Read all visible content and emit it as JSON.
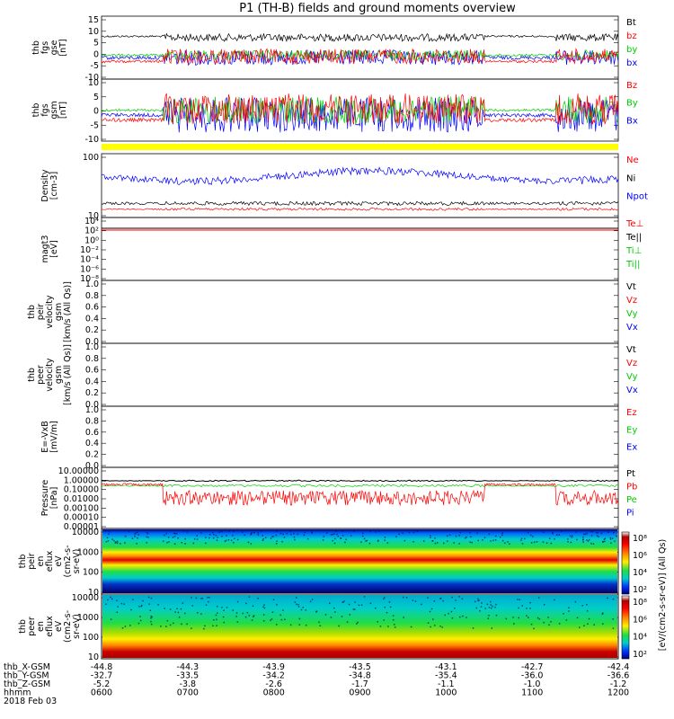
{
  "title": "P1 (TH-B) fields and ground moments overview",
  "colors": {
    "black": "#000000",
    "red": "#ff0000",
    "green": "#00cc00",
    "blue": "#0000ff",
    "yellow": "#ffff00"
  },
  "panels": [
    {
      "id": "fgs",
      "ylabel": [
        "thb",
        "fgs",
        "gse",
        "[nT]"
      ],
      "ticks": [
        "15",
        "10",
        "5",
        "0",
        "-5",
        "-10"
      ],
      "legend": [
        {
          "t": "Bt",
          "c": "black"
        },
        {
          "t": "bz",
          "c": "red"
        },
        {
          "t": "by",
          "c": "green"
        },
        {
          "t": "bx",
          "c": "blue"
        }
      ]
    },
    {
      "id": "fgs_gsm",
      "ylabel": [
        "thb",
        "fgs",
        "gsm",
        "[nT]"
      ],
      "ticks": [
        "10",
        "5",
        "0",
        "-5",
        "-10"
      ],
      "legend": [
        {
          "t": "Bz",
          "c": "red"
        },
        {
          "t": "By",
          "c": "green"
        },
        {
          "t": "Bx",
          "c": "blue"
        }
      ]
    },
    {
      "id": "density",
      "ylabel": [
        "Density",
        "[cm-3]"
      ],
      "ticks": [
        "100",
        "10"
      ],
      "legend": [
        {
          "t": "Ne",
          "c": "red"
        },
        {
          "t": "Ni",
          "c": "black"
        },
        {
          "t": "Npot",
          "c": "blue"
        }
      ]
    },
    {
      "id": "temp",
      "ylabel": [
        "magt3",
        "[eV]"
      ],
      "ticks": [
        "10⁴",
        "10²",
        "10⁰",
        "10⁻²",
        "10⁻⁴",
        "10⁻⁶",
        "10⁻⁸"
      ],
      "legend": [
        {
          "t": "Te⊥",
          "c": "red"
        },
        {
          "t": "Te||",
          "c": "black"
        },
        {
          "t": "Ti⊥",
          "c": "green"
        },
        {
          "t": "Ti||",
          "c": "green"
        }
      ]
    },
    {
      "id": "peir_vel",
      "ylabel": [
        "thb",
        "peir",
        "velocity",
        "gsm",
        "[km/s (All Qs)]"
      ],
      "ticks": [
        "1.0",
        "0.8",
        "0.6",
        "0.4",
        "0.2",
        "0.0"
      ],
      "legend": [
        {
          "t": "Vt",
          "c": "black"
        },
        {
          "t": "Vz",
          "c": "red"
        },
        {
          "t": "Vy",
          "c": "green"
        },
        {
          "t": "Vx",
          "c": "blue"
        }
      ]
    },
    {
      "id": "peer_vel",
      "ylabel": [
        "thb",
        "peer",
        "velocity",
        "gsm",
        "[km/s (All Qs)]"
      ],
      "ticks": [
        "1.0",
        "0.8",
        "0.6",
        "0.4",
        "0.2",
        "0.0"
      ],
      "legend": [
        {
          "t": "Vt",
          "c": "black"
        },
        {
          "t": "Vz",
          "c": "red"
        },
        {
          "t": "Vy",
          "c": "green"
        },
        {
          "t": "Vx",
          "c": "blue"
        }
      ]
    },
    {
      "id": "efield",
      "ylabel": [
        "E=-VxB",
        "[mV/m]"
      ],
      "ticks": [
        "1.0",
        "0.8",
        "0.6",
        "0.4",
        "0.2",
        "0.0"
      ],
      "legend": [
        {
          "t": "Ez",
          "c": "red"
        },
        {
          "t": "Ey",
          "c": "green"
        },
        {
          "t": "Ex",
          "c": "blue"
        }
      ]
    },
    {
      "id": "pressure",
      "ylabel": [
        "Pressure",
        "[nPa]"
      ],
      "ticks": [
        "10.00000",
        "1.00000",
        "0.10000",
        "0.01000",
        "0.00100",
        "0.00010",
        "0.00001"
      ],
      "legend": [
        {
          "t": "Pt",
          "c": "black"
        },
        {
          "t": "Pb",
          "c": "red"
        },
        {
          "t": "Pe",
          "c": "green"
        },
        {
          "t": "Pi",
          "c": "blue"
        }
      ]
    },
    {
      "id": "peir_spec",
      "ylabel": [
        "thb",
        "peir",
        "en",
        "eflux",
        "eV",
        "(cm2-s-",
        "sr-eV)"
      ],
      "ticks": [
        "10000",
        "1000",
        "100",
        "10"
      ],
      "legend": []
    },
    {
      "id": "peer_spec",
      "ylabel": [
        "thb",
        "peer",
        "en",
        "eflux",
        "eV",
        "(cm2-s-",
        "sr-eV)"
      ],
      "ticks": [
        "10000",
        "1000",
        "100",
        "10"
      ],
      "legend": []
    }
  ],
  "colorbars": [
    {
      "ticks": [
        "10⁸",
        "10⁶",
        "10⁴",
        "10²"
      ]
    },
    {
      "ticks": [
        "10⁸",
        "10⁶",
        "10⁴",
        "10²"
      ]
    }
  ],
  "colorbar_label": "[eV/(cm2-s-sr-eV)] (All Qs)",
  "xaxis": {
    "rows": [
      {
        "label": "thb_X-GSM",
        "values": [
          "-44.8",
          "-44.3",
          "-43.9",
          "-43.5",
          "-43.1",
          "-42.7",
          "-42.4"
        ]
      },
      {
        "label": "thb_Y-GSM",
        "values": [
          "-32.7",
          "-33.5",
          "-34.2",
          "-34.8",
          "-35.4",
          "-36.0",
          "-36.6"
        ]
      },
      {
        "label": "thb_Z-GSM",
        "values": [
          "-5.2",
          "-3.8",
          "-2.6",
          "-1.7",
          "-1.1",
          "-1.0",
          "-1.2"
        ]
      },
      {
        "label": "hhmm",
        "values": [
          "0600",
          "0700",
          "0800",
          "0900",
          "1000",
          "1100",
          "1200"
        ]
      }
    ],
    "date": "2018 Feb 03"
  }
}
